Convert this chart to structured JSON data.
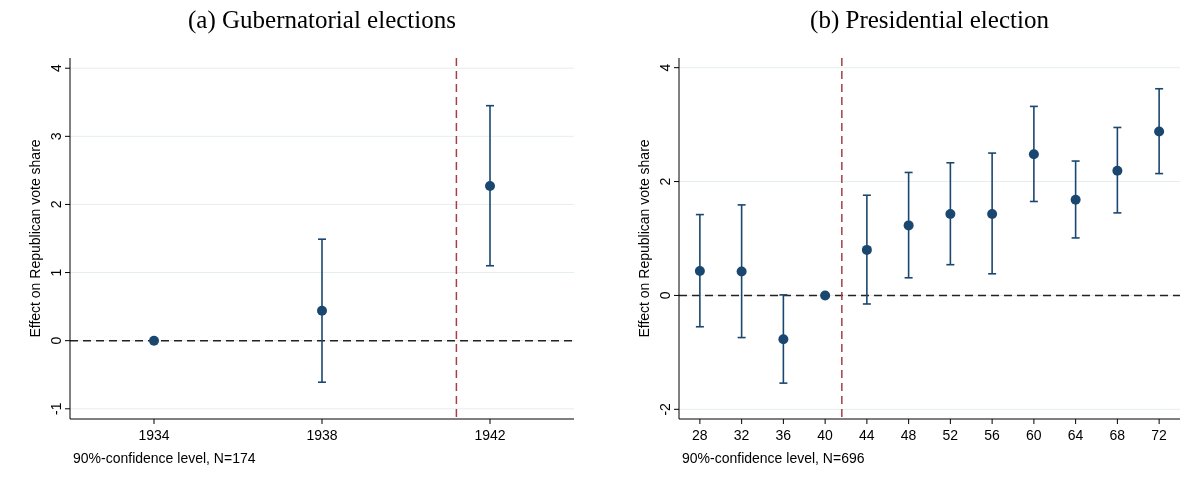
{
  "chart_data": [
    {
      "type": "scatter",
      "title": "(a) Gubernatorial elections",
      "ylabel": "Effect on Republican vote share",
      "annotations": [
        "90%-confidence level, N=174"
      ],
      "x": [
        1934,
        1938,
        1942
      ],
      "series": [
        {
          "color": "#1a476f",
          "values": [
            0,
            0.44,
            2.27
          ],
          "errors": [
            null,
            [
              -0.61,
              1.49
            ],
            [
              1.1,
              3.45
            ]
          ]
        }
      ],
      "xlim": [
        1932,
        1944
      ],
      "xticks": [
        1934,
        1938,
        1942
      ],
      "ylim": [
        -1.15,
        4.15
      ],
      "yticks": [
        -1,
        0,
        1,
        2,
        3,
        4
      ],
      "grid": "y",
      "marker": "circle",
      "ref_lines": [
        {
          "axis": "y",
          "value": 0,
          "color": "#222222",
          "line_style": "dashed"
        },
        {
          "axis": "x",
          "value": 1941.2,
          "color": "#a0404a",
          "line_style": "dashed"
        }
      ]
    },
    {
      "type": "scatter",
      "title": "(b) Presidential election",
      "ylabel": "Effect on Republican vote share",
      "annotations": [
        "90%-confidence level, N=696"
      ],
      "x": [
        28,
        32,
        36,
        40,
        44,
        48,
        52,
        56,
        60,
        64,
        68,
        72
      ],
      "series": [
        {
          "color": "#1a476f",
          "values": [
            0.43,
            0.42,
            -0.77,
            0,
            0.8,
            1.23,
            1.43,
            1.43,
            2.48,
            1.68,
            2.19,
            2.88
          ],
          "errors": [
            [
              -0.55,
              1.42
            ],
            [
              -0.74,
              1.59
            ],
            [
              -1.54,
              0.01
            ],
            null,
            [
              -0.15,
              1.76
            ],
            [
              0.31,
              2.16
            ],
            [
              0.54,
              2.33
            ],
            [
              0.38,
              2.5
            ],
            [
              1.65,
              3.32
            ],
            [
              1.01,
              2.36
            ],
            [
              1.45,
              2.95
            ],
            [
              2.14,
              3.63
            ]
          ]
        }
      ],
      "xlim": [
        26,
        74
      ],
      "xticks": [
        28,
        32,
        36,
        40,
        44,
        48,
        52,
        56,
        60,
        64,
        68,
        72
      ],
      "ylim": [
        -2.17,
        4.17
      ],
      "yticks": [
        -2,
        0,
        2,
        4
      ],
      "grid": "y",
      "marker": "circle",
      "ref_lines": [
        {
          "axis": "y",
          "value": 0,
          "color": "#222222",
          "line_style": "dashed"
        },
        {
          "axis": "x",
          "value": 41.6,
          "color": "#a0404a",
          "line_style": "dashed"
        }
      ]
    }
  ]
}
